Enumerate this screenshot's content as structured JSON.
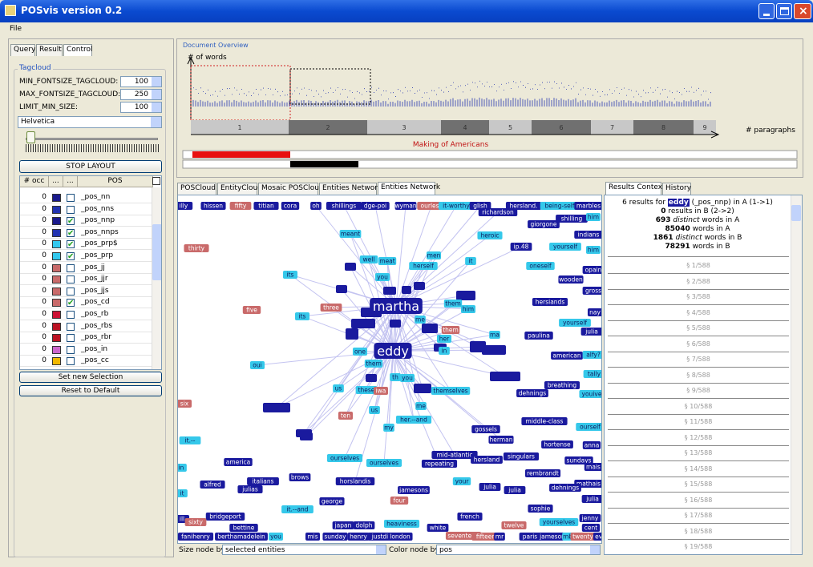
{
  "window": {
    "title": "POSvis version 0.2",
    "menu": [
      "File"
    ]
  },
  "left_panel": {
    "tabs": [
      "Query",
      "Result",
      "Control"
    ],
    "group_title": "Tagcloud",
    "fields": [
      {
        "label": "MIN_FONTSIZE_TAGCLOUD:",
        "value": 100
      },
      {
        "label": "MAX_FONTSIZE_TAGCLOUD:",
        "value": 250
      },
      {
        "label": "LIMIT_MIN_SIZE:",
        "value": 100
      }
    ],
    "font": "Helvetica",
    "stop_button": "STOP LAYOUT",
    "table_header": [
      "# occ",
      "...",
      "...",
      "POS"
    ],
    "rows": [
      {
        "occ": 0,
        "color": "#1a1a8c",
        "checked": false,
        "pos": "_pos_nn"
      },
      {
        "occ": 0,
        "color": "#2233b0",
        "checked": false,
        "pos": "_pos_nns"
      },
      {
        "occ": 0,
        "color": "#1a1a8c",
        "checked": true,
        "pos": "_pos_nnp"
      },
      {
        "occ": 0,
        "color": "#2233b0",
        "checked": true,
        "pos": "_pos_nnps"
      },
      {
        "occ": 0,
        "color": "#33c8ee",
        "checked": true,
        "pos": "_pos_prp$"
      },
      {
        "occ": 0,
        "color": "#33c8ee",
        "checked": true,
        "pos": "_pos_prp"
      },
      {
        "occ": 0,
        "color": "#c96a6a",
        "checked": false,
        "pos": "_pos_jj"
      },
      {
        "occ": 0,
        "color": "#c96a6a",
        "checked": false,
        "pos": "_pos_jjr"
      },
      {
        "occ": 0,
        "color": "#c96a6a",
        "checked": false,
        "pos": "_pos_jjs"
      },
      {
        "occ": 0,
        "color": "#c96a6a",
        "checked": true,
        "pos": "_pos_cd"
      },
      {
        "occ": 0,
        "color": "#cc1133",
        "checked": false,
        "pos": "_pos_rb"
      },
      {
        "occ": 0,
        "color": "#bb1122",
        "checked": false,
        "pos": "_pos_rbs"
      },
      {
        "occ": 0,
        "color": "#bb1122",
        "checked": false,
        "pos": "_pos_rbr"
      },
      {
        "occ": 0,
        "color": "#cc66cc",
        "checked": false,
        "pos": "_pos_in"
      },
      {
        "occ": 0,
        "color": "#f0b800",
        "checked": false,
        "pos": "_pos_cc"
      }
    ],
    "buttons": [
      "Set new Selection",
      "Reset to Default"
    ]
  },
  "overview": {
    "title": "Document Overview",
    "y_label": "# of words",
    "x_label": "# paragraphs",
    "segments": [
      "1",
      "2",
      "3",
      "4",
      "5",
      "6",
      "7",
      "8",
      "9"
    ],
    "document": "Making of Americans"
  },
  "center_tabs": [
    "POSCloud",
    "EntityCloud",
    "Mosaic POSCloud",
    "Entities Network",
    "Entities Network"
  ],
  "network": {
    "nodes": [
      {
        "label": "illy",
        "color": "#1a1a9e"
      },
      {
        "label": "hissen",
        "color": "#1a1a9e"
      },
      {
        "label": "fifty",
        "color": "#c96a6a"
      },
      {
        "label": "titian",
        "color": "#1a1a9e"
      },
      {
        "label": "cora",
        "color": "#1a1a9e"
      },
      {
        "label": "oh",
        "color": "#1a1a9e"
      },
      {
        "label": "shillings",
        "color": "#1a1a9e"
      },
      {
        "label": "dge-poi",
        "color": "#1a1a9e"
      },
      {
        "label": "wyman",
        "color": "#1a1a9e"
      },
      {
        "label": "ourless",
        "color": "#c96a6a"
      },
      {
        "label": "it-worthy",
        "color": "#35c8ea"
      },
      {
        "label": "glish",
        "color": "#1a1a9e"
      },
      {
        "label": "hersland.",
        "color": "#1a1a9e"
      },
      {
        "label": "being-self",
        "color": "#35c8ea"
      },
      {
        "label": "marbles",
        "color": "#1a1a9e"
      },
      {
        "label": "richardson",
        "color": "#1a1a9e"
      },
      {
        "label": "giorgone",
        "color": "#1a1a9e"
      },
      {
        "label": "shilling",
        "color": "#1a1a9e"
      },
      {
        "label": "him",
        "color": "#35c8ea"
      },
      {
        "label": "indians",
        "color": "#1a1a9e"
      },
      {
        "label": "heroic",
        "color": "#35c8ea"
      },
      {
        "label": "meant",
        "color": "#35c8ea"
      },
      {
        "label": "ip.48",
        "color": "#1a1a9e"
      },
      {
        "label": "yourself",
        "color": "#35c8ea"
      },
      {
        "label": "him",
        "color": "#35c8ea"
      },
      {
        "label": "thirty",
        "color": "#c96a6a"
      },
      {
        "label": "men",
        "color": "#35c8ea"
      },
      {
        "label": "it",
        "color": "#35c8ea"
      },
      {
        "label": "well",
        "color": "#35c8ea"
      },
      {
        "label": "meat",
        "color": "#35c8ea"
      },
      {
        "label": "herself",
        "color": "#35c8ea"
      },
      {
        "label": "oneself",
        "color": "#35c8ea"
      },
      {
        "label": "opain",
        "color": "#1a1a9e"
      },
      {
        "label": "its",
        "color": "#35c8ea"
      },
      {
        "label": "you",
        "color": "#35c8ea"
      },
      {
        "label": "wooden",
        "color": "#1a1a9e"
      },
      {
        "label": "gross",
        "color": "#1a1a9e"
      },
      {
        "label": "martha",
        "color": "#1a1a9e"
      },
      {
        "label": "hersiands",
        "color": "#1a1a9e"
      },
      {
        "label": "them",
        "color": "#35c8ea"
      },
      {
        "label": "him",
        "color": "#35c8ea"
      },
      {
        "label": "three",
        "color": "#c96a6a"
      },
      {
        "label": "five",
        "color": "#c96a6a"
      },
      {
        "label": "nay",
        "color": "#1a1a9e"
      },
      {
        "label": "its",
        "color": "#35c8ea"
      },
      {
        "label": "yourself",
        "color": "#35c8ea"
      },
      {
        "label": "julia",
        "color": "#1a1a9e"
      },
      {
        "label": "me",
        "color": "#35c8ea"
      },
      {
        "label": "them",
        "color": "#c96a6a"
      },
      {
        "label": "ma",
        "color": "#35c8ea"
      },
      {
        "label": "paulina",
        "color": "#1a1a9e"
      },
      {
        "label": "her",
        "color": "#35c8ea"
      },
      {
        "label": "eddy",
        "color": "#1a1a9e"
      },
      {
        "label": "one",
        "color": "#35c8ea"
      },
      {
        "label": "in",
        "color": "#35c8ea"
      },
      {
        "label": "american",
        "color": "#1a1a9e"
      },
      {
        "label": "alfy?",
        "color": "#35c8ea"
      },
      {
        "label": "them",
        "color": "#35c8ea"
      },
      {
        "label": "oui",
        "color": "#35c8ea"
      },
      {
        "label": "tally",
        "color": "#35c8ea"
      },
      {
        "label": "th",
        "color": "#35c8ea"
      },
      {
        "label": "you",
        "color": "#35c8ea"
      },
      {
        "label": "breathing",
        "color": "#1a1a9e"
      },
      {
        "label": "us",
        "color": "#35c8ea"
      },
      {
        "label": "these",
        "color": "#35c8ea"
      },
      {
        "label": "iwa",
        "color": "#c96a6a"
      },
      {
        "label": "themselves",
        "color": "#35c8ea"
      },
      {
        "label": "dehnings",
        "color": "#1a1a9e"
      },
      {
        "label": "youive",
        "color": "#35c8ea"
      },
      {
        "label": "six",
        "color": "#c96a6a"
      },
      {
        "label": "me",
        "color": "#35c8ea"
      },
      {
        "label": "us",
        "color": "#35c8ea"
      },
      {
        "label": "ten",
        "color": "#c96a6a"
      },
      {
        "label": "her.--and",
        "color": "#35c8ea"
      },
      {
        "label": "middle-class",
        "color": "#1a1a9e"
      },
      {
        "label": "ourself",
        "color": "#35c8ea"
      },
      {
        "label": "my",
        "color": "#35c8ea"
      },
      {
        "label": "gossels",
        "color": "#1a1a9e"
      },
      {
        "label": "herman",
        "color": "#1a1a9e"
      },
      {
        "label": "it.--",
        "color": "#35c8ea"
      },
      {
        "label": "hortense",
        "color": "#1a1a9e"
      },
      {
        "label": "anna",
        "color": "#1a1a9e"
      },
      {
        "label": "mid-atlantic",
        "color": "#1a1a9e"
      },
      {
        "label": "singulars",
        "color": "#1a1a9e"
      },
      {
        "label": "ourselves",
        "color": "#35c8ea"
      },
      {
        "label": "hersland",
        "color": "#1a1a9e"
      },
      {
        "label": "sundays",
        "color": "#1a1a9e"
      },
      {
        "label": "america",
        "color": "#1a1a9e"
      },
      {
        "label": "ourselves",
        "color": "#35c8ea"
      },
      {
        "label": "repeating",
        "color": "#1a1a9e"
      },
      {
        "label": "in",
        "color": "#35c8ea"
      },
      {
        "label": "mais",
        "color": "#1a1a9e"
      },
      {
        "label": "rembrandt",
        "color": "#1a1a9e"
      },
      {
        "label": "brows",
        "color": "#1a1a9e"
      },
      {
        "label": "your",
        "color": "#35c8ea"
      },
      {
        "label": "italians",
        "color": "#1a1a9e"
      },
      {
        "label": "horslandis",
        "color": "#1a1a9e"
      },
      {
        "label": "mathais",
        "color": "#1a1a9e"
      },
      {
        "label": "alfred",
        "color": "#1a1a9e"
      },
      {
        "label": "julia",
        "color": "#1a1a9e"
      },
      {
        "label": "dehnings",
        "color": "#1a1a9e"
      },
      {
        "label": "julias",
        "color": "#1a1a9e"
      },
      {
        "label": "julia",
        "color": "#1a1a9e"
      },
      {
        "label": "jamesons",
        "color": "#1a1a9e"
      },
      {
        "label": "it",
        "color": "#35c8ea"
      },
      {
        "label": "julia",
        "color": "#1a1a9e"
      },
      {
        "label": "george",
        "color": "#1a1a9e"
      },
      {
        "label": "four",
        "color": "#c96a6a"
      },
      {
        "label": "sophie",
        "color": "#1a1a9e"
      },
      {
        "label": "it.--and",
        "color": "#35c8ea"
      },
      {
        "label": "bridgeport",
        "color": "#1a1a9e"
      },
      {
        "label": "french",
        "color": "#1a1a9e"
      },
      {
        "label": "jenny",
        "color": "#1a1a9e"
      },
      {
        "label": "ill",
        "color": "#1a1a9e"
      },
      {
        "label": "sixty",
        "color": "#c96a6a"
      },
      {
        "label": "yourselves",
        "color": "#35c8ea"
      },
      {
        "label": "heaviness",
        "color": "#35c8ea"
      },
      {
        "label": "japan",
        "color": "#1a1a9e"
      },
      {
        "label": "dolph",
        "color": "#1a1a9e"
      },
      {
        "label": "twelve",
        "color": "#c96a6a"
      },
      {
        "label": "bettine",
        "color": "#1a1a9e"
      },
      {
        "label": "white",
        "color": "#1a1a9e"
      },
      {
        "label": "cent",
        "color": "#1a1a9e"
      },
      {
        "label": "seventeen",
        "color": "#c96a6a"
      },
      {
        "label": "fanihenry",
        "color": "#1a1a9e"
      },
      {
        "label": "berthamadelein",
        "color": "#1a1a9e"
      },
      {
        "label": "you",
        "color": "#35c8ea"
      },
      {
        "label": "mis",
        "color": "#1a1a9e"
      },
      {
        "label": "sunday",
        "color": "#1a1a9e"
      },
      {
        "label": "henry",
        "color": "#1a1a9e"
      },
      {
        "label": "justdi",
        "color": "#1a1a9e"
      },
      {
        "label": "london",
        "color": "#1a1a9e"
      },
      {
        "label": "fifteen",
        "color": "#c96a6a"
      },
      {
        "label": "mr",
        "color": "#1a1a9e"
      },
      {
        "label": "paris",
        "color": "#1a1a9e"
      },
      {
        "label": "jameson",
        "color": "#1a1a9e"
      },
      {
        "label": "mb",
        "color": "#35c8ea"
      },
      {
        "label": "twenty",
        "color": "#c96a6a"
      },
      {
        "label": "eve",
        "color": "#1a1a9e"
      }
    ]
  },
  "network_controls": {
    "size_label": "Size node by:",
    "size_value": "selected entities",
    "color_label": "Color node by:",
    "color_value": "pos"
  },
  "right_panel": {
    "tabs": [
      "Results Context",
      "History"
    ],
    "head": {
      "prefix": "6 results for",
      "term": "eddy",
      "suffix": "(_pos_nnp) in A (1->1)"
    },
    "stats": [
      {
        "bold": "0",
        "em": "",
        "rest": "results in B (2->2)"
      },
      {
        "bold": "693",
        "em": "distinct",
        "rest": "words in A"
      },
      {
        "bold": "85040",
        "em": "",
        "rest": "words in A"
      },
      {
        "bold": "1861",
        "em": "distinct",
        "rest": "words in B"
      },
      {
        "bold": "78291",
        "em": "",
        "rest": "words in B"
      }
    ],
    "sections": [
      "§ 1/588",
      "§ 2/588",
      "§ 3/588",
      "§ 4/588",
      "§ 5/588",
      "§ 6/588",
      "§ 7/588",
      "§ 8/588",
      "§ 9/588",
      "§ 10/588",
      "§ 11/588",
      "§ 12/588",
      "§ 13/588",
      "§ 14/588",
      "§ 15/588",
      "§ 16/588",
      "§ 17/588",
      "§ 18/588",
      "§ 19/588"
    ]
  }
}
